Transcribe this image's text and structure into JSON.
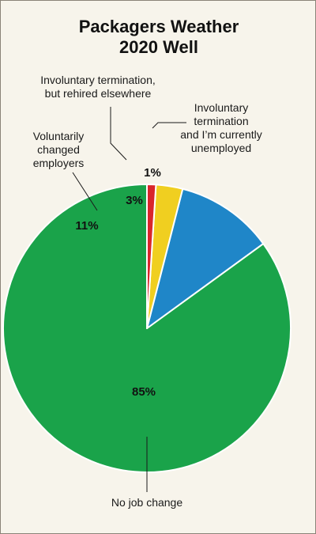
{
  "chart_data": {
    "type": "pie",
    "title": "Packagers Weather 2020 Well",
    "title_lines": [
      "Packagers Weather",
      "2020 Well"
    ],
    "start_angle_deg": 0,
    "direction": "clockwise",
    "slices": [
      {
        "label": "No job change",
        "label_lines": [
          "No job change"
        ],
        "value": 85,
        "value_label": "85%",
        "color": "#1aa34a"
      },
      {
        "label": "Voluntarily changed employers",
        "label_lines": [
          "Voluntarily",
          "changed",
          "employers"
        ],
        "value": 11,
        "value_label": "11%",
        "color": "#1f86c8"
      },
      {
        "label": "Involuntary termination, but rehired elsewhere",
        "label_lines": [
          "Involuntary termination,",
          "but rehired elsewhere"
        ],
        "value": 3,
        "value_label": "3%",
        "color": "#f0cf20"
      },
      {
        "label": "Involuntary termination and I'm currently unemployed",
        "label_lines": [
          "Involuntary",
          "termination",
          "and I’m currently",
          "unemployed"
        ],
        "value": 1,
        "value_label": "1%",
        "color": "#d9262b"
      }
    ],
    "slice_border_color": "#ffffff",
    "background_color": "#f7f4eb"
  }
}
